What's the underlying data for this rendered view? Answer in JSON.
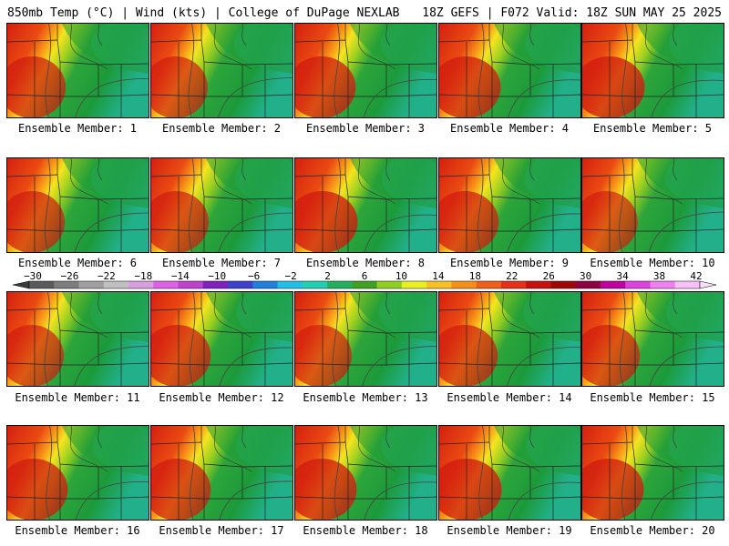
{
  "header": {
    "left": "850mb Temp (°C) | Wind (kts) | College of DuPage NEXLAB",
    "right": "18Z GEFS | F072 Valid: 18Z SUN MAY 25 2025"
  },
  "colorbar": {
    "labels": [
      "−30",
      "−26",
      "−22",
      "−18",
      "−14",
      "−10",
      "−6",
      "−2",
      "2",
      "6",
      "10",
      "14",
      "18",
      "22",
      "26",
      "30",
      "34",
      "38",
      "42"
    ],
    "colors": [
      "#5a5a5a",
      "#7d7d7d",
      "#a0a0a0",
      "#c0c0c0",
      "#d8a0e0",
      "#e060e8",
      "#c040d0",
      "#8020c0",
      "#4040d0",
      "#2080e0",
      "#20c0e8",
      "#20d0b0",
      "#20b060",
      "#40a020",
      "#90d020",
      "#e8f020",
      "#f8c020",
      "#f89018",
      "#f06018",
      "#e83018",
      "#c81010",
      "#a00808",
      "#900040",
      "#c000a0",
      "#e040e0",
      "#f080f0",
      "#f8c0f8"
    ]
  },
  "panels": [
    {
      "label": "Ensemble Member: 1",
      "warm": 0.55
    },
    {
      "label": "Ensemble Member: 2",
      "warm": 0.45
    },
    {
      "label": "Ensemble Member: 3",
      "warm": 0.65
    },
    {
      "label": "Ensemble Member: 4",
      "warm": 0.7
    },
    {
      "label": "Ensemble Member: 5",
      "warm": 0.75
    },
    {
      "label": "Ensemble Member: 6",
      "warm": 0.5
    },
    {
      "label": "Ensemble Member: 7",
      "warm": 0.5
    },
    {
      "label": "Ensemble Member: 8",
      "warm": 0.75
    },
    {
      "label": "Ensemble Member: 9",
      "warm": 0.6
    },
    {
      "label": "Ensemble Member: 10",
      "warm": 0.4
    },
    {
      "label": "Ensemble Member: 11",
      "warm": 0.45
    },
    {
      "label": "Ensemble Member: 12",
      "warm": 0.6
    },
    {
      "label": "Ensemble Member: 13",
      "warm": 0.45
    },
    {
      "label": "Ensemble Member: 14",
      "warm": 0.55
    },
    {
      "label": "Ensemble Member: 15",
      "warm": 0.5
    },
    {
      "label": "Ensemble Member: 16",
      "warm": 0.65
    },
    {
      "label": "Ensemble Member: 17",
      "warm": 0.6
    },
    {
      "label": "Ensemble Member: 18",
      "warm": 0.7
    },
    {
      "label": "Ensemble Member: 19",
      "warm": 0.75
    },
    {
      "label": "Ensemble Member: 20",
      "warm": 0.7
    }
  ]
}
